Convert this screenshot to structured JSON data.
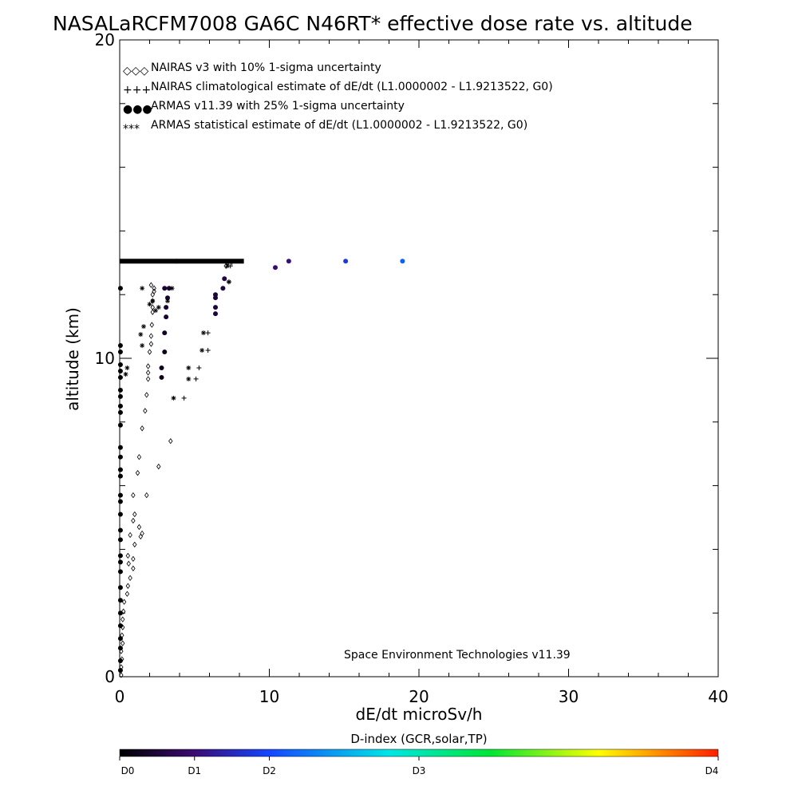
{
  "chart_data": {
    "type": "scatter",
    "title": "NASALaRCFM7008  GA6C N46RT* effective dose rate vs. altitude",
    "xlabel": "dE/dt microSv/h",
    "ylabel": "altitude (km)",
    "xlim": [
      0,
      40
    ],
    "ylim": [
      0,
      20
    ],
    "x_ticks": [
      0,
      10,
      20,
      30,
      40
    ],
    "y_ticks": [
      0,
      10,
      20
    ],
    "legend_position": "top-left",
    "legend": [
      {
        "symbol": "◇◇◇",
        "label": "NAIRAS v3 with 10% 1-sigma uncertainty"
      },
      {
        "symbol": "+++",
        "label": "NAIRAS climatological estimate of dE/dt (L1.0000002 - L1.9213522, G0)"
      },
      {
        "symbol": "●●●",
        "label": "ARMAS v11.39 with 25% 1-sigma uncertainty"
      },
      {
        "symbol": "***",
        "label": "ARMAS statistical estimate of dE/dt (L1.0000002 - L1.9213522, G0)"
      }
    ],
    "annotation": "Space Environment Technologies v11.39",
    "colorbar": {
      "title": "D-index (GCR,solar,TP)",
      "tick_labels": [
        "D0",
        "D1",
        "D2",
        "D3",
        "D4"
      ],
      "tick_positions": [
        0,
        0.125,
        0.25,
        0.5,
        1.0
      ]
    },
    "series": [
      {
        "name": "NAIRAS v3 with 10% 1-sigma uncertainty",
        "marker": "diamond",
        "points": [
          [
            0.1,
            0.05
          ],
          [
            0.1,
            0.3
          ],
          [
            0.15,
            0.55
          ],
          [
            0.1,
            0.8
          ],
          [
            0.2,
            1.05
          ],
          [
            0.15,
            1.3
          ],
          [
            0.2,
            1.55
          ],
          [
            0.2,
            1.8
          ],
          [
            0.25,
            2.05
          ],
          [
            0.3,
            2.35
          ],
          [
            0.5,
            2.6
          ],
          [
            0.55,
            2.85
          ],
          [
            0.7,
            3.1
          ],
          [
            0.9,
            3.4
          ],
          [
            0.6,
            3.55
          ],
          [
            0.9,
            3.7
          ],
          [
            0.55,
            3.8
          ],
          [
            1.0,
            4.15
          ],
          [
            1.4,
            4.4
          ],
          [
            0.7,
            4.45
          ],
          [
            1.3,
            4.7
          ],
          [
            1.5,
            4.5
          ],
          [
            0.9,
            4.9
          ],
          [
            1.0,
            5.1
          ],
          [
            1.8,
            5.7
          ],
          [
            0.9,
            5.7
          ],
          [
            1.2,
            6.4
          ],
          [
            2.6,
            6.6
          ],
          [
            1.3,
            6.9
          ],
          [
            3.4,
            7.4
          ],
          [
            1.5,
            7.8
          ],
          [
            1.7,
            8.35
          ],
          [
            1.8,
            8.85
          ],
          [
            1.9,
            9.35
          ],
          [
            1.9,
            9.55
          ],
          [
            1.9,
            9.75
          ],
          [
            2.0,
            10.2
          ],
          [
            2.1,
            10.45
          ],
          [
            2.1,
            10.7
          ],
          [
            2.15,
            11.05
          ],
          [
            2.2,
            11.45
          ],
          [
            2.2,
            11.6
          ],
          [
            2.2,
            11.8
          ],
          [
            2.2,
            12.0
          ],
          [
            2.3,
            12.1
          ],
          [
            2.3,
            12.2
          ],
          [
            2.1,
            12.3
          ],
          [
            7.1,
            12.9
          ],
          [
            7.2,
            13.0
          ]
        ]
      },
      {
        "name": "NAIRAS climatological estimate of dE/dt (L1.0000002 - L1.9213522, G0)",
        "marker": "plus",
        "points": [
          [
            4.3,
            8.75
          ],
          [
            5.1,
            9.35
          ],
          [
            5.3,
            9.7
          ],
          [
            5.9,
            10.25
          ],
          [
            5.9,
            10.8
          ],
          [
            7.3,
            12.4
          ],
          [
            7.4,
            12.9
          ],
          [
            7.5,
            13.0
          ]
        ]
      },
      {
        "name": "ARMAS v11.39 with 25% 1-sigma uncertainty",
        "marker": "dot",
        "points": [
          [
            0.05,
            0.2
          ],
          [
            0.05,
            0.5
          ],
          [
            0.05,
            0.9
          ],
          [
            0.05,
            1.2
          ],
          [
            0.05,
            1.6
          ],
          [
            0.05,
            2.0
          ],
          [
            0.05,
            2.4
          ],
          [
            0.05,
            2.8
          ],
          [
            0.05,
            3.3
          ],
          [
            0.05,
            3.6
          ],
          [
            0.05,
            3.8
          ],
          [
            0.05,
            4.3
          ],
          [
            0.05,
            4.6
          ],
          [
            0.05,
            5.1
          ],
          [
            0.05,
            5.5
          ],
          [
            0.05,
            5.7
          ],
          [
            0.05,
            6.3
          ],
          [
            0.05,
            6.5
          ],
          [
            0.05,
            6.9
          ],
          [
            0.05,
            7.2
          ],
          [
            0.05,
            7.9
          ],
          [
            0.05,
            8.3
          ],
          [
            0.05,
            8.5
          ],
          [
            0.05,
            8.8
          ],
          [
            0.05,
            9.0
          ],
          [
            0.05,
            9.4
          ],
          [
            0.05,
            9.6
          ],
          [
            0.05,
            9.8
          ],
          [
            0.05,
            10.2
          ],
          [
            0.05,
            10.4
          ],
          [
            0.05,
            12.2
          ],
          [
            2.8,
            9.4
          ],
          [
            2.8,
            9.7
          ],
          [
            3.0,
            10.2
          ],
          [
            3.0,
            10.8
          ],
          [
            3.1,
            11.3
          ],
          [
            3.1,
            11.6
          ],
          [
            3.2,
            11.9
          ],
          [
            3.3,
            12.2
          ],
          [
            3.0,
            12.2
          ],
          [
            6.4,
            11.4
          ],
          [
            6.4,
            11.6
          ],
          [
            6.4,
            11.9
          ],
          [
            6.4,
            12.0
          ],
          [
            6.9,
            12.2
          ],
          [
            7.0,
            12.5
          ],
          [
            10.4,
            12.85
          ],
          [
            11.3,
            13.05
          ],
          [
            15.1,
            13.05
          ],
          [
            18.9,
            13.05
          ],
          [
            3.8,
            13.05
          ]
        ],
        "d_index": [
          0,
          0,
          0,
          0,
          0,
          0,
          0,
          0,
          0,
          0,
          0,
          0,
          0,
          0,
          0,
          0,
          0,
          0,
          0,
          0,
          0,
          0,
          0,
          0,
          0,
          0,
          0,
          0,
          0,
          0,
          0,
          0.03,
          0.03,
          0.03,
          0.04,
          0.05,
          0.05,
          0.05,
          0.05,
          0.05,
          0.06,
          0.06,
          0.06,
          0.06,
          0.07,
          0.07,
          0.12,
          0.13,
          0.22,
          0.28,
          0.12
        ]
      },
      {
        "name": "ARMAS statistical estimate of dE/dt (L1.0000002 - L1.9213522, G0)",
        "marker": "asterisk",
        "points": [
          [
            0.4,
            9.5
          ],
          [
            0.5,
            9.7
          ],
          [
            1.4,
            10.75
          ],
          [
            1.5,
            10.4
          ],
          [
            1.6,
            11.0
          ],
          [
            1.5,
            12.2
          ],
          [
            2.0,
            11.7
          ],
          [
            2.2,
            11.8
          ],
          [
            2.4,
            11.5
          ],
          [
            2.6,
            11.6
          ],
          [
            3.2,
            11.8
          ],
          [
            3.5,
            12.2
          ],
          [
            3.6,
            8.75
          ],
          [
            4.6,
            9.35
          ],
          [
            4.6,
            9.7
          ],
          [
            5.5,
            10.25
          ],
          [
            5.6,
            10.8
          ],
          [
            7.3,
            12.4
          ],
          [
            7.2,
            12.9
          ]
        ]
      },
      {
        "name": "dense band at cruise altitude",
        "marker": "band",
        "points": [
          [
            0.0,
            13.05
          ],
          [
            8.3,
            13.05
          ]
        ]
      }
    ]
  }
}
